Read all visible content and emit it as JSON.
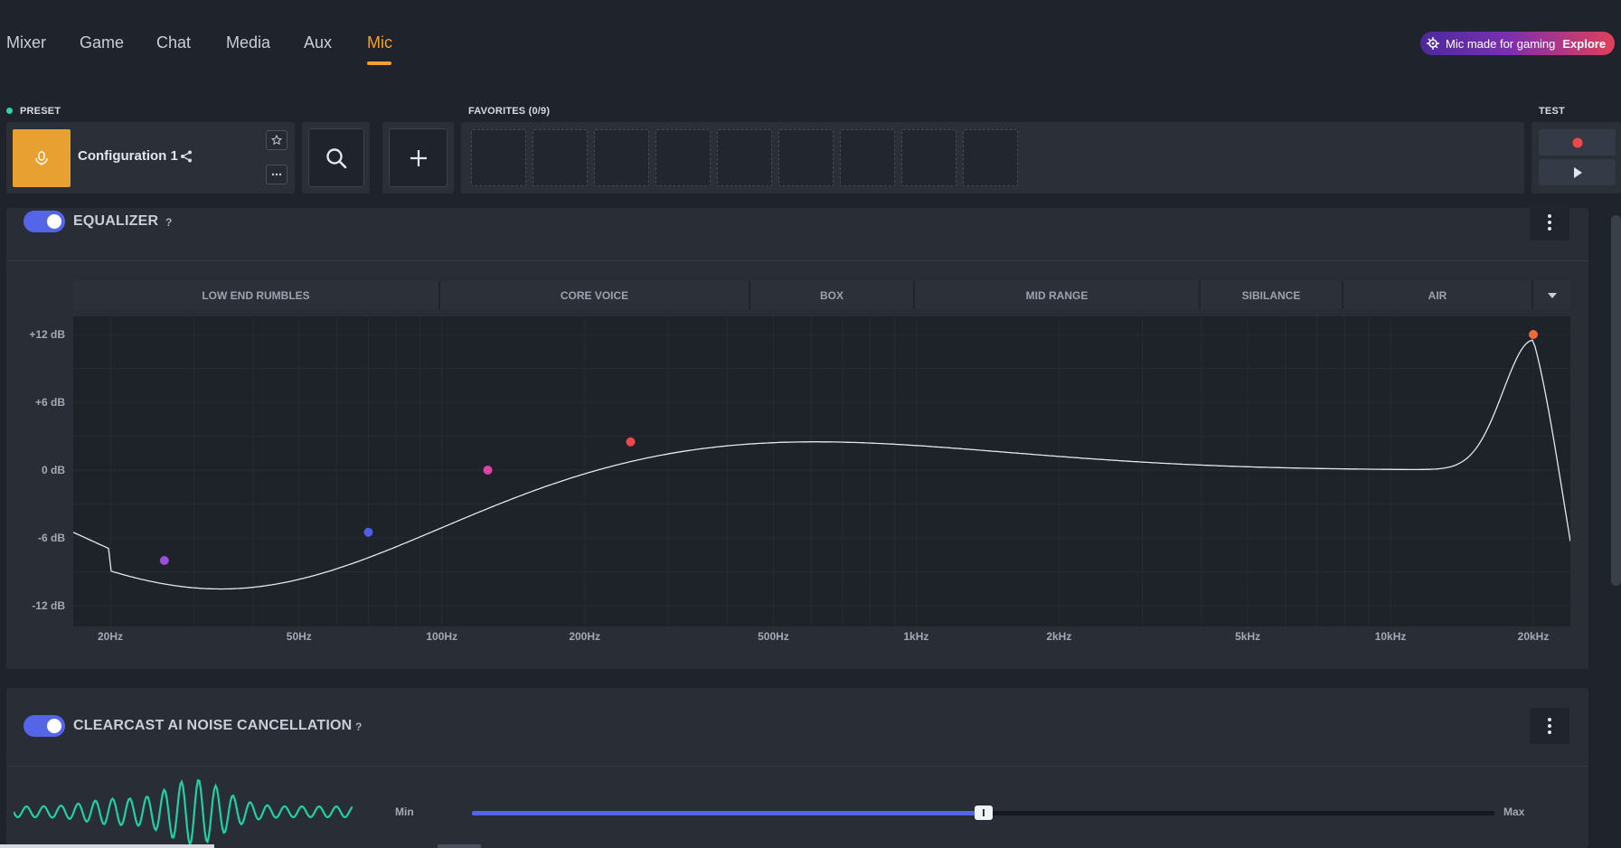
{
  "nav": {
    "tabs": [
      {
        "label": "Mixer",
        "active": false
      },
      {
        "label": "Game",
        "active": false
      },
      {
        "label": "Chat",
        "active": false
      },
      {
        "label": "Media",
        "active": false
      },
      {
        "label": "Aux",
        "active": false
      },
      {
        "label": "Mic",
        "active": true
      }
    ],
    "promo": {
      "text": "Mic made for gaming",
      "action": "Explore"
    }
  },
  "preset": {
    "label": "PRESET",
    "status_color": "#2ed3a6",
    "name": "Configuration 1",
    "icon": "mic-icon",
    "accent": "#e8a030"
  },
  "favorites": {
    "label": "FAVORITES (0/9)",
    "slots": 9,
    "filled": 0
  },
  "test": {
    "label": "TEST",
    "record_icon": "record-icon",
    "play_icon": "play-icon"
  },
  "equalizer": {
    "title": "EQUALIZER",
    "help": "?",
    "enabled": true,
    "bands": [
      "LOW END RUMBLES",
      "CORE VOICE",
      "BOX",
      "MID RANGE",
      "SIBILANCE",
      "AIR"
    ],
    "y_ticks": [
      "+12 dB",
      "+6 dB",
      "0 dB",
      "-6 dB",
      "-12 dB"
    ],
    "x_ticks": [
      "20Hz",
      "50Hz",
      "100Hz",
      "200Hz",
      "500Hz",
      "1kHz",
      "2kHz",
      "5kHz",
      "10kHz",
      "20kHz"
    ],
    "nodes": [
      {
        "freq_hz": 26,
        "gain_db": -8,
        "color": "#9b4de0"
      },
      {
        "freq_hz": 70,
        "gain_db": -5.5,
        "color": "#4f5de8"
      },
      {
        "freq_hz": 125,
        "gain_db": 0,
        "color": "#e040a8"
      },
      {
        "freq_hz": 250,
        "gain_db": 2.5,
        "color": "#f04848"
      },
      {
        "freq_hz": 20000,
        "gain_db": 12,
        "color": "#f26a3a"
      }
    ]
  },
  "clearcast": {
    "title": "CLEARCAST AI NOISE CANCELLATION",
    "help": "?",
    "enabled": true,
    "slider": {
      "min_label": "Min",
      "max_label": "Max",
      "value": 0.5
    }
  }
}
